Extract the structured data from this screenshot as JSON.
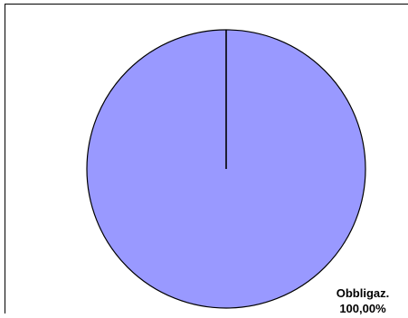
{
  "chart_data": {
    "type": "pie",
    "slices": [
      {
        "category": "Obbligaz.",
        "value": 100.0,
        "percent_label": "100,00%",
        "color": "#9999ff"
      }
    ],
    "start_angle": "top (12 o'clock)",
    "slice_border_color": "#000000"
  }
}
